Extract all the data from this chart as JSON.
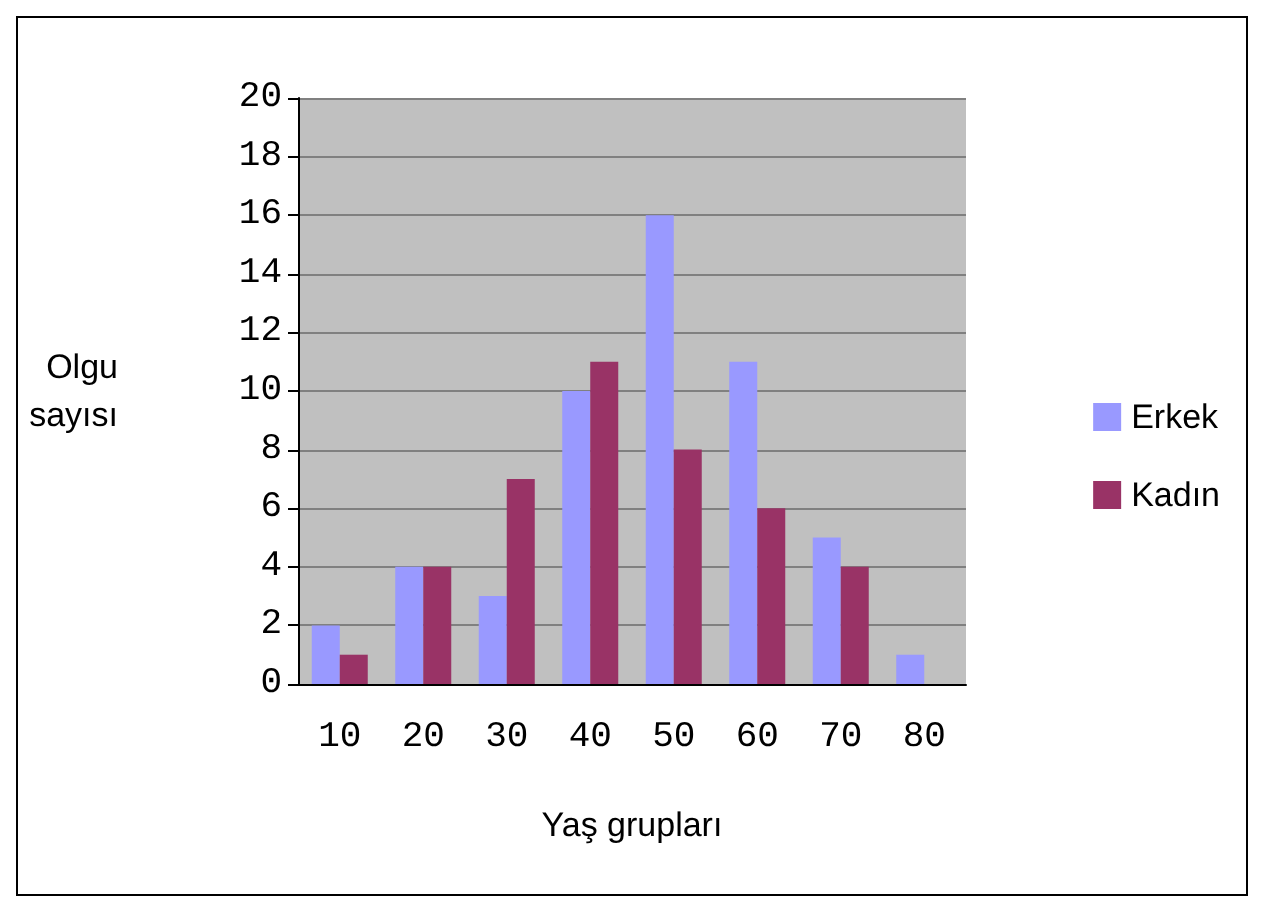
{
  "chart_data": {
    "type": "bar",
    "xlabel": "Yaş grupları",
    "ylabel": "Olgu sayısı",
    "categories": [
      "10",
      "20",
      "30",
      "40",
      "50",
      "60",
      "70",
      "80"
    ],
    "series": [
      {
        "name": "Erkek",
        "color": "#9999ff",
        "values": [
          2,
          4,
          3,
          10,
          16,
          11,
          5,
          1
        ]
      },
      {
        "name": "Kadın",
        "color": "#993366",
        "values": [
          1,
          4,
          7,
          11,
          8,
          6,
          4,
          0
        ]
      }
    ],
    "ylim": [
      0,
      20
    ],
    "yticks": [
      0,
      2,
      4,
      6,
      8,
      10,
      12,
      14,
      16,
      18,
      20
    ],
    "grid": "y",
    "legend": "right"
  }
}
